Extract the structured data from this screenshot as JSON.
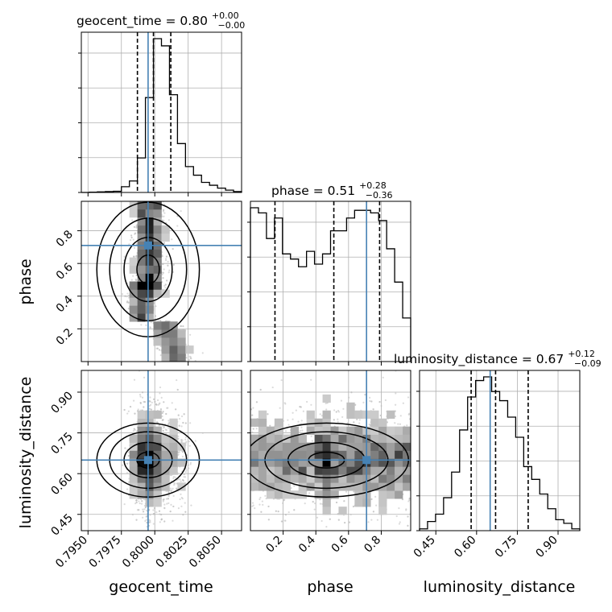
{
  "chart_data": {
    "type": "corner",
    "parameters": [
      "geocent_time",
      "phase",
      "luminosity_distance"
    ],
    "truths": {
      "geocent_time": 0.7995,
      "phase": 0.71,
      "luminosity_distance": 0.65
    },
    "line_color": "#4682b4",
    "panel_titles": [
      {
        "param": "geocent_time",
        "text": "geocent_time = 0.80",
        "sup": "+0.00",
        "sub": "−0.00"
      },
      {
        "param": "phase",
        "text": "phase = 0.51",
        "sup": "+0.28",
        "sub": "−0.36"
      },
      {
        "param": "luminosity_distance",
        "text": "luminosity_distance = 0.67",
        "sup": "+0.12",
        "sub": "−0.09"
      }
    ],
    "axis_labels": {
      "x": [
        "geocent_time",
        "phase",
        "luminosity_distance"
      ],
      "y": [
        "phase",
        "luminosity_distance"
      ]
    },
    "ranges": {
      "geocent_time": [
        0.7945,
        0.8065
      ],
      "phase": [
        0.0,
        0.98
      ],
      "luminosity_distance": [
        0.39,
        0.98
      ]
    },
    "ticks": {
      "geocent_time": [
        "0.7950",
        "0.7975",
        "0.8000",
        "0.8025",
        "0.8050"
      ],
      "phase": [
        "0.2",
        "0.4",
        "0.6",
        "0.8"
      ],
      "luminosity_distance": [
        "0.45",
        "0.60",
        "0.75",
        "0.90"
      ]
    },
    "quantiles": {
      "geocent_time": [
        0.7987,
        0.7999,
        0.8012
      ],
      "phase": [
        0.15,
        0.51,
        0.79
      ],
      "luminosity_distance": [
        0.58,
        0.67,
        0.79
      ]
    },
    "histograms": {
      "geocent_time": {
        "edges_start": 0.7945,
        "bin_width": 0.0006,
        "counts": [
          0,
          1,
          2,
          3,
          4,
          20,
          40,
          120,
          330,
          535,
          510,
          340,
          170,
          90,
          60,
          35,
          25,
          15,
          8,
          3
        ]
      },
      "phase": {
        "edges_start": 0.0,
        "bin_width": 0.049,
        "counts": [
          300,
          290,
          240,
          280,
          210,
          200,
          185,
          215,
          190,
          210,
          255,
          255,
          280,
          295,
          295,
          290,
          275,
          220,
          155,
          85
        ]
      },
      "luminosity_distance": {
        "edges_start": 0.39,
        "bin_width": 0.0295,
        "counts": [
          5,
          25,
          45,
          90,
          160,
          275,
          365,
          410,
          420,
          380,
          355,
          310,
          255,
          175,
          140,
          100,
          60,
          30,
          20,
          5
        ]
      }
    },
    "grid": true
  }
}
